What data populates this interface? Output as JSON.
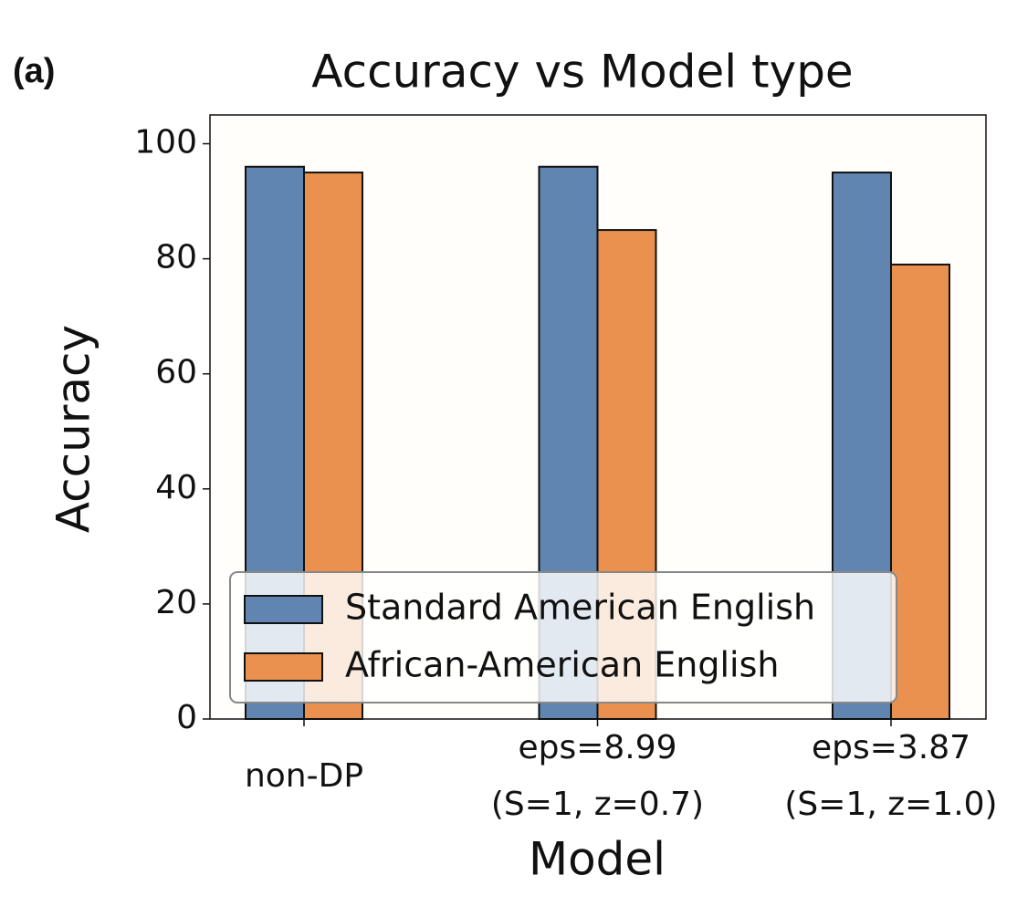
{
  "panel_label": "(a)",
  "chart_data": {
    "type": "bar",
    "title": "Accuracy vs Model type",
    "x_label": "Model",
    "y_label": "Accuracy",
    "categories": [
      "non-DP",
      "eps=8.99\n(S=1, z=0.7)",
      "eps=3.87\n(S=1, z=1.0)"
    ],
    "series": [
      {
        "name": "Standard American English",
        "color": "#5f85b0",
        "values": [
          96,
          96,
          95
        ]
      },
      {
        "name": "African-American English",
        "color": "#ea9150",
        "values": [
          95,
          85,
          79
        ]
      }
    ],
    "ylim": [
      0,
      105
    ],
    "yticks": [
      0,
      20,
      40,
      60,
      80,
      100
    ],
    "legend": "lower left"
  }
}
